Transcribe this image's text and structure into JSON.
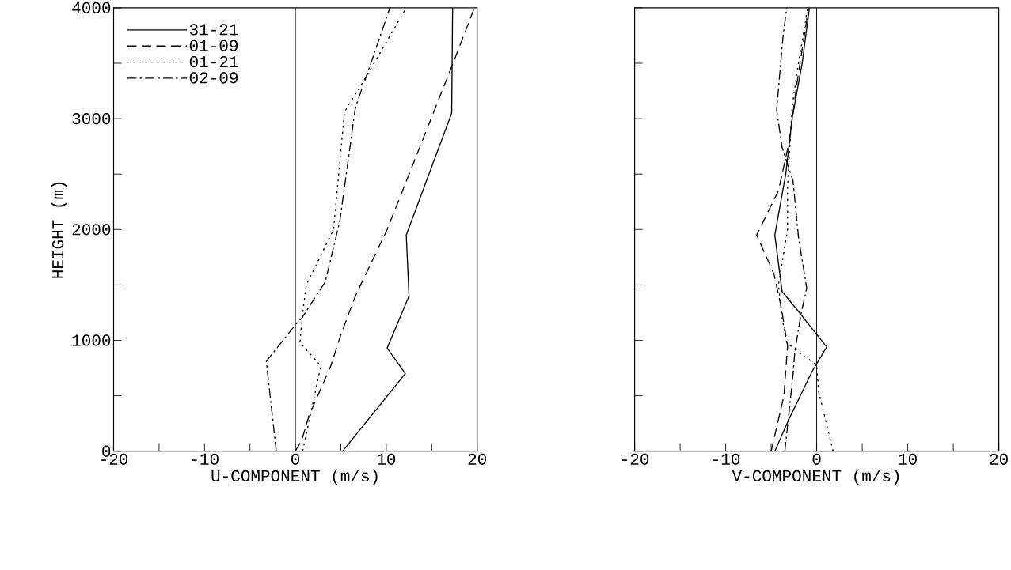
{
  "chart_data": [
    {
      "type": "line",
      "xlabel": "U-COMPONENT (m/s)",
      "ylabel": "HEIGHT (m)",
      "xlim": [
        -20,
        20
      ],
      "ylim": [
        0,
        4000
      ],
      "xticks": [
        -20,
        {
          "value": -15,
          "label": null
        },
        -10,
        {
          "value": -5,
          "label": null
        },
        0,
        {
          "value": 5,
          "label": null
        },
        10,
        {
          "value": 15,
          "label": null
        },
        20
      ],
      "yticks": [
        0,
        {
          "value": 500,
          "label": null
        },
        1000,
        {
          "value": 1500,
          "label": null
        },
        2000,
        {
          "value": 2500,
          "label": null
        },
        3000,
        {
          "value": 3500,
          "label": null
        },
        4000
      ],
      "legend": "top left",
      "grid": false,
      "marker": "none",
      "ref_lines": [
        {
          "axis": "x",
          "value": 0,
          "color": "#000000"
        }
      ],
      "series": [
        {
          "name": "31-21",
          "color": "#000000",
          "line_style": "solid",
          "x": [
            5.2,
            12.1,
            10.1,
            12.5,
            12.2,
            17.2,
            17.3
          ],
          "values": [
            0,
            700,
            930,
            1400,
            1950,
            3050,
            4000
          ]
        },
        {
          "name": "01-09",
          "color": "#000000",
          "line_style": "dashed",
          "x": [
            0,
            0.7,
            1.5,
            3.9,
            5.0,
            6.6,
            10.1,
            17.2,
            19.7
          ],
          "values": [
            0,
            100,
            320,
            770,
            1050,
            1400,
            2000,
            3470,
            4000
          ]
        },
        {
          "name": "01-21",
          "color": "#000000",
          "line_style": "dotted",
          "x": [
            0.8,
            2.8,
            0.5,
            0.8,
            1.2,
            4.2,
            5.4,
            7.8,
            12.2
          ],
          "values": [
            0,
            770,
            980,
            1250,
            1500,
            2000,
            3060,
            3380,
            4000
          ]
        },
        {
          "name": "02-09",
          "color": "#000000",
          "line_style": "dashdot",
          "x": [
            -2.1,
            -3.2,
            0.1,
            0.7,
            3.3,
            4.9,
            6.6,
            7.8,
            10.4
          ],
          "values": [
            0,
            810,
            1150,
            1200,
            1530,
            2080,
            3100,
            3380,
            4000
          ]
        }
      ]
    },
    {
      "type": "line",
      "xlabel": "V-COMPONENT (m/s)",
      "xlim": [
        -20,
        20
      ],
      "ylim": [
        0,
        4000
      ],
      "xticks": [
        -20,
        {
          "value": -15,
          "label": null
        },
        -10,
        {
          "value": -5,
          "label": null
        },
        0,
        {
          "value": 5,
          "label": null
        },
        10,
        {
          "value": 15,
          "label": null
        },
        20
      ],
      "yticks": [
        {
          "value": 0,
          "label": null
        },
        {
          "value": 500,
          "label": null
        },
        {
          "value": 1000,
          "label": null
        },
        {
          "value": 1500,
          "label": null
        },
        {
          "value": 2000,
          "label": null
        },
        {
          "value": 2500,
          "label": null
        },
        {
          "value": 3000,
          "label": null
        },
        {
          "value": 3500,
          "label": null
        },
        {
          "value": 4000,
          "label": null
        }
      ],
      "tick_labels": "x",
      "legend": false,
      "grid": false,
      "marker": "none",
      "ref_lines": [
        {
          "axis": "x",
          "value": 0,
          "color": "#000000"
        }
      ],
      "series": [
        {
          "color": "#000000",
          "line_style": "solid",
          "x": [
            -4.6,
            -3.1,
            -0.5,
            1.1,
            -2.0,
            -3.8,
            -4.6,
            -3.4,
            -2.7,
            -1.6,
            -0.8
          ],
          "values": [
            0,
            280,
            720,
            940,
            1260,
            1440,
            1950,
            2500,
            3000,
            3500,
            4000
          ]
        },
        {
          "color": "#000000",
          "line_style": "dashed",
          "x": [
            -5.0,
            -3.6,
            -3.2,
            -3.9,
            -4.7,
            -6.6,
            -4.2,
            -3.0,
            -2.2,
            -0.9
          ],
          "values": [
            0,
            500,
            950,
            1300,
            1600,
            1950,
            2350,
            2800,
            3300,
            4000
          ]
        },
        {
          "color": "#000000",
          "line_style": "dotted",
          "x": [
            1.8,
            0.2,
            0,
            -2.0,
            -3.3,
            -3.8,
            -4.2,
            -3.2,
            -3.2,
            -2.7,
            -2.2,
            -1.0
          ],
          "values": [
            0,
            540,
            780,
            890,
            980,
            1200,
            1500,
            2000,
            2400,
            3100,
            3400,
            4000
          ]
        },
        {
          "color": "#000000",
          "line_style": "dashdot",
          "x": [
            -3.5,
            -2.6,
            -2.4,
            -1.7,
            -1.1,
            -2.0,
            -2.6,
            -3.8,
            -4.4,
            -3.7,
            -3.3
          ],
          "values": [
            0,
            690,
            900,
            1250,
            1470,
            1930,
            2440,
            2740,
            3080,
            3740,
            4000
          ]
        }
      ]
    }
  ]
}
